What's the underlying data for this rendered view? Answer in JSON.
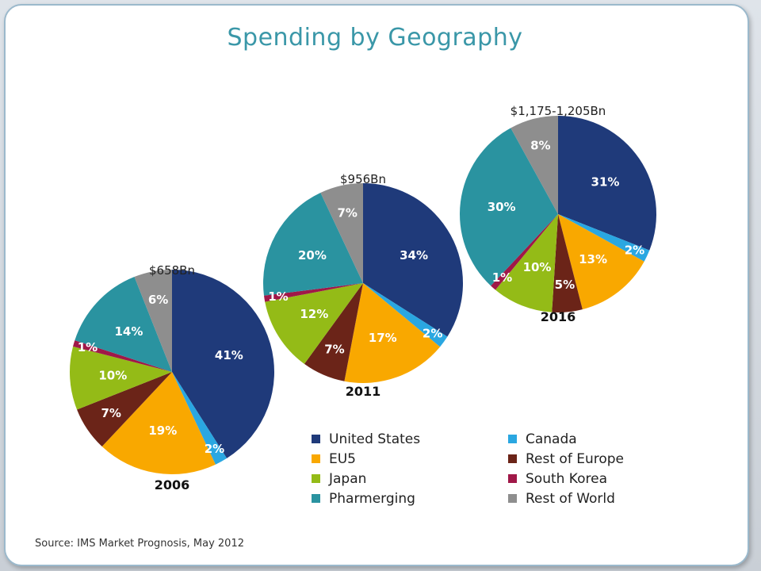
{
  "title": "Spending by Geography",
  "source": "Source: IMS Market Prognosis, May 2012",
  "chart_data": {
    "type": "pie",
    "categories": [
      "United States",
      "Canada",
      "EU5",
      "Rest of Europe",
      "Japan",
      "South Korea",
      "Pharmerging",
      "Rest of World"
    ],
    "colors": [
      "#1f3a7a",
      "#2aa7e1",
      "#f9a800",
      "#6b2418",
      "#94bb17",
      "#a01848",
      "#2a93a0",
      "#8e8e8e"
    ],
    "label_colors": [
      "#ffffff",
      "#ffffff",
      "#ffffff",
      "#ffffff",
      "#ffffff",
      "#ffffff",
      "#ffffff",
      "#ffffff"
    ],
    "legend_placement": "bottom-right",
    "pies": [
      {
        "year": "2006",
        "total": "$658Bn",
        "values": [
          41,
          2,
          19,
          7,
          10,
          1,
          14,
          6
        ],
        "labels": [
          "41%",
          "2%",
          "19%",
          "7%",
          "10%",
          "1%",
          "14%",
          "6%"
        ]
      },
      {
        "year": "2011",
        "total": "$956Bn",
        "values": [
          34,
          2,
          17,
          7,
          12,
          1,
          20,
          7
        ],
        "labels": [
          "34%",
          "2%",
          "17%",
          "7%",
          "12%",
          "1%",
          "20%",
          "7%"
        ]
      },
      {
        "year": "2016",
        "total": "$1,175-1,205Bn",
        "values": [
          31,
          2,
          13,
          5,
          10,
          1,
          30,
          8
        ],
        "labels": [
          "31%",
          "2%",
          "13%",
          "5%",
          "10%",
          "1%",
          "30%",
          "8%"
        ]
      }
    ]
  }
}
